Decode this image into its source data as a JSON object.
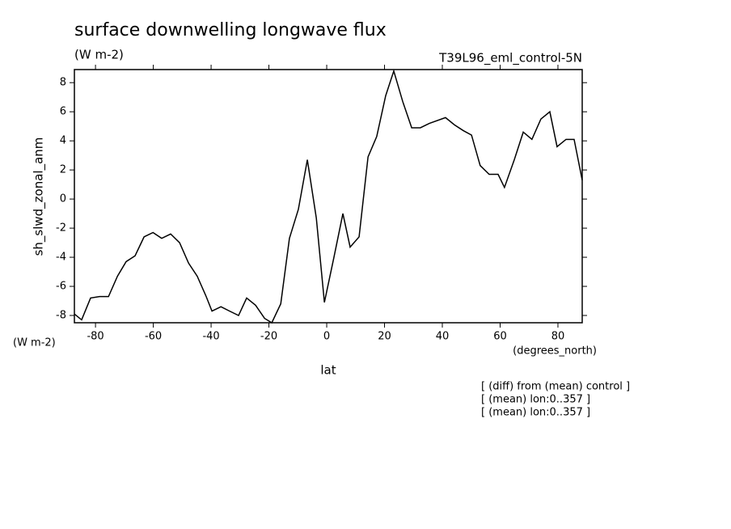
{
  "chart_data": {
    "type": "line",
    "title": "surface downwelling longwave flux",
    "subtitle": "(W m-2)",
    "dataset": "T39L96_eml_control-5N",
    "y_label": "sh_slwd_zonal_anm",
    "y_units": "(W m-2)",
    "x_units": "(degrees_north)",
    "x_label": "lat",
    "notes": [
      "[ (diff) from (mean) control ]",
      "[ (mean) lon:0..357 ]",
      "[ (mean) lon:0..357 ]"
    ],
    "x": [
      -87.3,
      -84.8,
      -81.7,
      -78.6,
      -75.5,
      -72.4,
      -69.4,
      -66.3,
      -63.2,
      -60.1,
      -57.1,
      -54.0,
      -50.9,
      -47.8,
      -44.8,
      -41.7,
      -39.7,
      -36.6,
      -33.6,
      -30.5,
      -27.7,
      -24.6,
      -21.5,
      -19.0,
      -15.9,
      -12.9,
      -9.8,
      -6.7,
      -3.6,
      -0.8,
      2.5,
      5.6,
      8.1,
      11.2,
      14.3,
      17.3,
      20.4,
      23.2,
      26.3,
      29.4,
      32.4,
      35.5,
      41.1,
      44.2,
      47.3,
      50.1,
      53.1,
      56.2,
      59.3,
      61.5,
      64.9,
      68.0,
      71.0,
      74.1,
      77.2,
      79.7,
      82.8,
      85.6,
      88.4
    ],
    "series": [
      {
        "name": "sh_slwd_zonal_anm",
        "color": "#000000",
        "values": [
          -7.9,
          -8.3,
          -6.8,
          -6.7,
          -6.7,
          -5.3,
          -4.3,
          -3.9,
          -2.6,
          -2.3,
          -2.7,
          -2.4,
          -3.0,
          -4.4,
          -5.3,
          -6.7,
          -7.7,
          -7.4,
          -7.7,
          -8.0,
          -6.8,
          -7.3,
          -8.2,
          -8.5,
          -7.2,
          -2.7,
          -0.7,
          2.7,
          -1.3,
          -7.1,
          -4.0,
          -1.0,
          -3.3,
          -2.6,
          2.9,
          4.3,
          7.1,
          8.8,
          6.7,
          4.9,
          4.9,
          5.2,
          5.6,
          5.1,
          4.7,
          4.4,
          2.3,
          1.7,
          1.7,
          0.8,
          2.7,
          4.6,
          4.1,
          5.5,
          6.0,
          3.6,
          4.1,
          4.1,
          1.3
        ]
      }
    ],
    "xlim": [
      -87.3,
      88.4
    ],
    "ylim": [
      -8.5,
      8.9
    ],
    "xticks": [
      -80,
      -60,
      -40,
      -20,
      0,
      20,
      40,
      60,
      80
    ],
    "yticks": [
      -8,
      -6,
      -4,
      -2,
      0,
      2,
      4,
      6,
      8
    ]
  }
}
